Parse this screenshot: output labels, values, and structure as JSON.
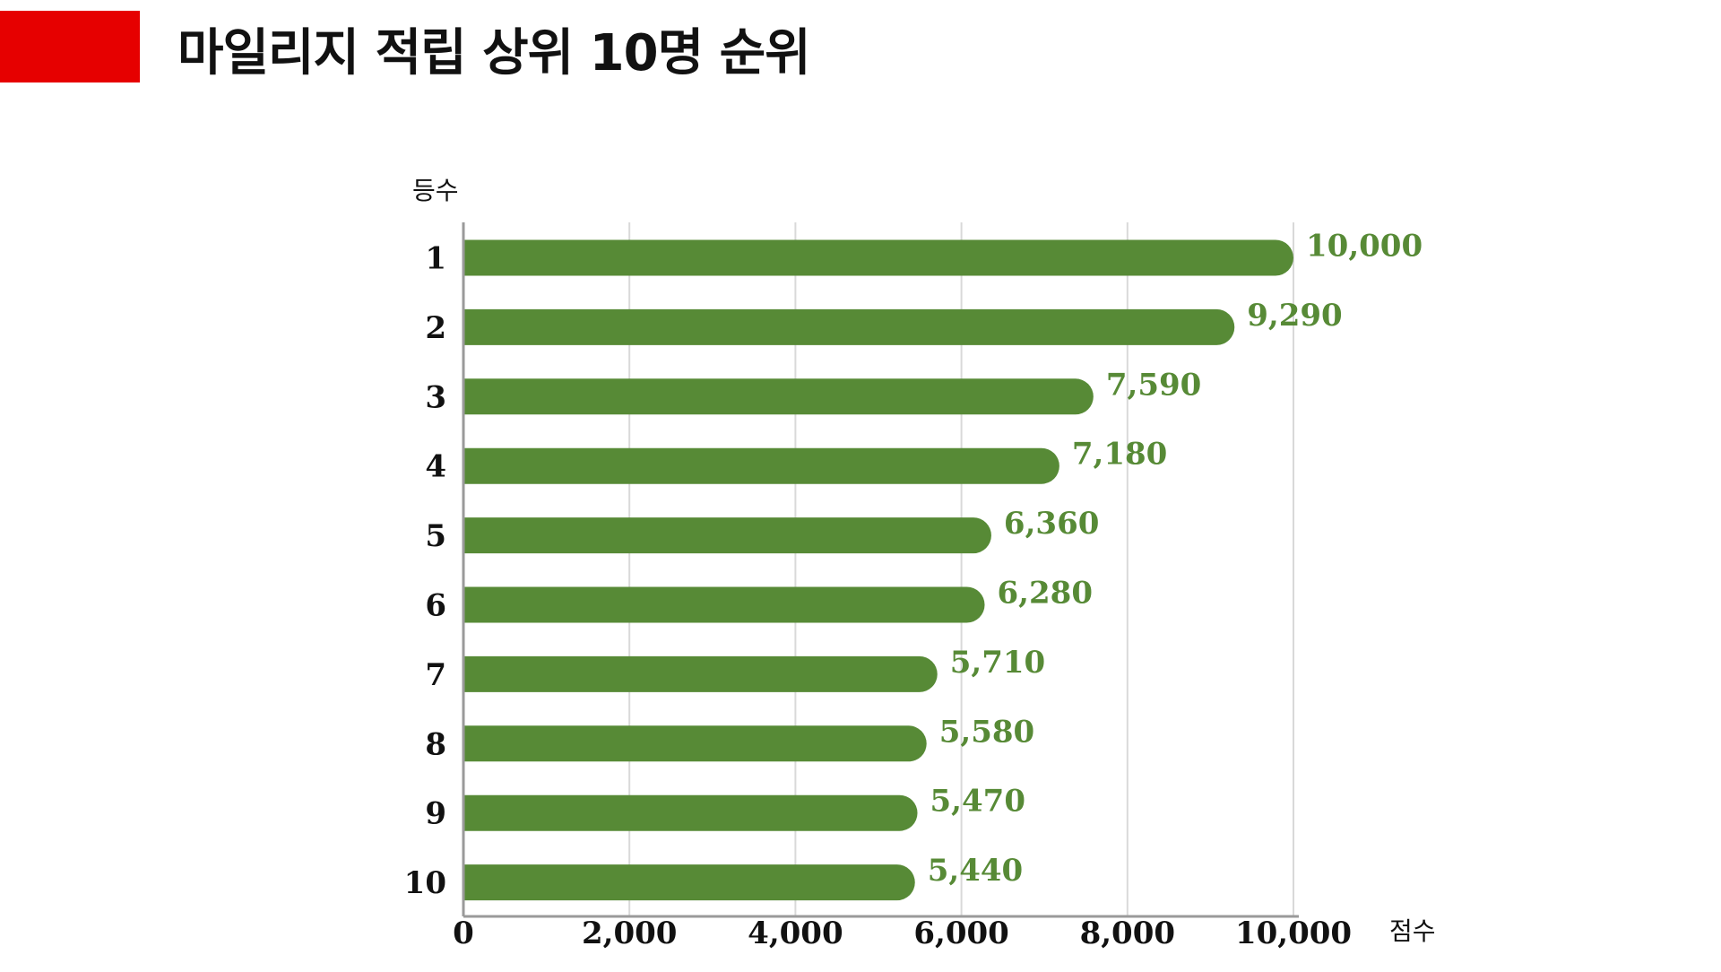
{
  "page": {
    "title": "마일리지 적립 상위 10명 순위",
    "accent_color": "#e60000"
  },
  "chart_data": {
    "type": "bar",
    "orientation": "horizontal",
    "title": "마일리지 적립 상위 10명 순위",
    "ylabel": "등수",
    "xlabel": "점수",
    "categories": [
      "1",
      "2",
      "3",
      "4",
      "5",
      "6",
      "7",
      "8",
      "9",
      "10"
    ],
    "series": [
      {
        "values": [
          10000,
          9290,
          7590,
          7180,
          6360,
          6280,
          5710,
          5580,
          5470,
          5440
        ]
      }
    ],
    "value_labels": [
      "10,000",
      "9,290",
      "7,590",
      "7,180",
      "6,360",
      "6,280",
      "5,710",
      "5,580",
      "5,470",
      "5,440"
    ],
    "xlim": [
      0,
      10000
    ],
    "xticks": [
      0,
      2000,
      4000,
      6000,
      8000,
      10000
    ],
    "xtick_labels": [
      "0",
      "2,000",
      "4,000",
      "6,000",
      "8,000",
      "10,000"
    ],
    "grid": "vertical",
    "bar_color": "#578a36",
    "label_color": "#578a36",
    "legend": "none"
  }
}
